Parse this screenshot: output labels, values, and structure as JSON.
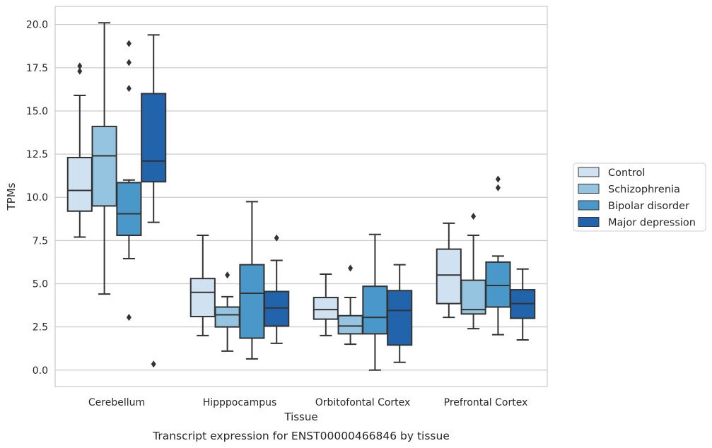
{
  "chart_data": {
    "type": "box",
    "title": "",
    "caption": "Transcript expression for ENST00000466846 by tissue",
    "xlabel": "Tissue",
    "ylabel": "TPMs",
    "ylim": [
      -0.95,
      21.05
    ],
    "yticks": [
      0.0,
      2.5,
      5.0,
      7.5,
      10.0,
      12.5,
      15.0,
      17.5,
      20.0
    ],
    "ytick_labels": [
      "0.0",
      "2.5",
      "5.0",
      "7.5",
      "10.0",
      "12.5",
      "15.0",
      "17.5",
      "20.0"
    ],
    "grid": "horizontal",
    "legend_position": "right",
    "categories": [
      "Cerebellum",
      "Hipppocampus",
      "Orbitofontal Cortex",
      "Prefrontal Cortex"
    ],
    "series": [
      {
        "name": "Control",
        "color": "#d0e1f2",
        "boxes": [
          {
            "whislo": 7.7,
            "q1": 9.2,
            "med": 10.4,
            "q3": 12.3,
            "whishi": 15.9,
            "fliers": [
              17.3,
              17.6
            ]
          },
          {
            "whislo": 2.0,
            "q1": 3.1,
            "med": 4.5,
            "q3": 5.3,
            "whishi": 7.8,
            "fliers": []
          },
          {
            "whislo": 2.0,
            "q1": 2.95,
            "med": 3.5,
            "q3": 4.2,
            "whishi": 5.55,
            "fliers": []
          },
          {
            "whislo": 3.05,
            "q1": 3.85,
            "med": 5.5,
            "q3": 7.0,
            "whishi": 8.5,
            "fliers": []
          }
        ]
      },
      {
        "name": "Schizophrenia",
        "color": "#94c4df",
        "boxes": [
          {
            "whislo": 4.4,
            "q1": 9.5,
            "med": 12.4,
            "q3": 14.1,
            "whishi": 20.1,
            "fliers": []
          },
          {
            "whislo": 1.1,
            "q1": 2.5,
            "med": 3.2,
            "q3": 3.65,
            "whishi": 4.25,
            "fliers": [
              5.5
            ]
          },
          {
            "whislo": 1.5,
            "q1": 2.1,
            "med": 2.55,
            "q3": 3.15,
            "whishi": 4.2,
            "fliers": [
              5.9
            ]
          },
          {
            "whislo": 2.4,
            "q1": 3.25,
            "med": 3.5,
            "q3": 5.2,
            "whishi": 7.8,
            "fliers": [
              8.9
            ]
          }
        ]
      },
      {
        "name": "Bipolar disorder",
        "color": "#4a98c9",
        "boxes": [
          {
            "whislo": 6.45,
            "q1": 7.8,
            "med": 9.05,
            "q3": 10.85,
            "whishi": 11.0,
            "fliers": [
              3.05,
              16.3,
              17.8,
              18.9
            ]
          },
          {
            "whislo": 0.65,
            "q1": 1.85,
            "med": 4.45,
            "q3": 6.1,
            "whishi": 9.75,
            "fliers": []
          },
          {
            "whislo": 0.0,
            "q1": 2.1,
            "med": 3.05,
            "q3": 4.85,
            "whishi": 7.85,
            "fliers": []
          },
          {
            "whislo": 2.05,
            "q1": 3.65,
            "med": 4.9,
            "q3": 6.25,
            "whishi": 6.6,
            "fliers": [
              10.55,
              11.05
            ]
          }
        ]
      },
      {
        "name": "Major depression",
        "color": "#2164ab",
        "boxes": [
          {
            "whislo": 8.55,
            "q1": 10.9,
            "med": 12.1,
            "q3": 16.0,
            "whishi": 19.4,
            "fliers": [
              0.35
            ]
          },
          {
            "whislo": 1.55,
            "q1": 2.55,
            "med": 3.6,
            "q3": 4.55,
            "whishi": 6.35,
            "fliers": [
              7.65
            ]
          },
          {
            "whislo": 0.45,
            "q1": 1.45,
            "med": 3.45,
            "q3": 4.6,
            "whishi": 6.1,
            "fliers": []
          },
          {
            "whislo": 1.75,
            "q1": 3.0,
            "med": 3.85,
            "q3": 4.65,
            "whishi": 5.85,
            "fliers": []
          }
        ]
      }
    ],
    "colors": {
      "grid": "#cccccc",
      "spine": "#cccccc",
      "line": "#333333",
      "text": "#262626"
    }
  }
}
